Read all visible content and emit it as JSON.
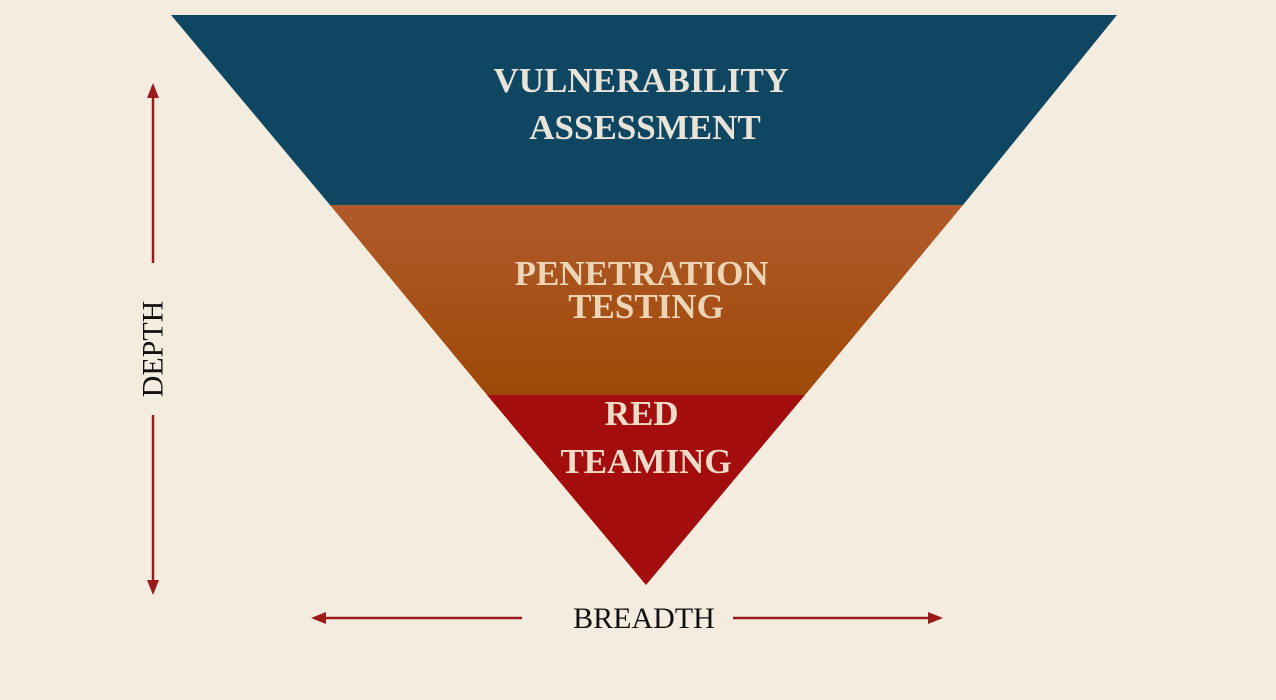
{
  "tiers": [
    {
      "lines": [
        "VULNERABILITY",
        "ASSESSMENT"
      ],
      "color": "#0f4763",
      "text_color": "#e9e4d9"
    },
    {
      "lines": [
        "PENETRATION",
        "TESTING"
      ],
      "color_top": "#b05a2a",
      "color_bottom": "#9e4808",
      "text_color": "#ecd6b6"
    },
    {
      "lines": [
        "RED",
        "TEAMING"
      ],
      "color": "#a30d0d",
      "text_color": "#eedbc8"
    }
  ],
  "axes": {
    "vertical_label": "DEPTH",
    "horizontal_label": "BREADTH",
    "arrow_color": "#9b1a1a"
  }
}
